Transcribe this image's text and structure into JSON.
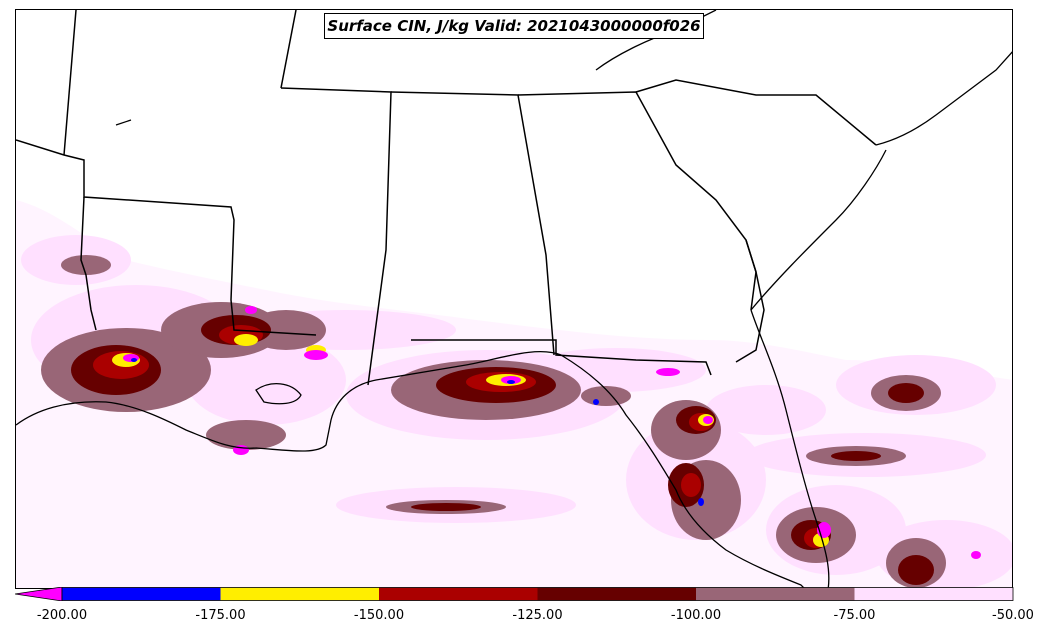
{
  "title": "Surface CIN, J/kg Valid: 2021043000000f026",
  "colorbar": {
    "extend_color": "#ff00ff",
    "bins": [
      {
        "from": -200,
        "to": -175,
        "color": "#0000ff"
      },
      {
        "from": -175,
        "to": -150,
        "color": "#ffee00"
      },
      {
        "from": -150,
        "to": -125,
        "color": "#aa0000"
      },
      {
        "from": -125,
        "to": -100,
        "color": "#660000"
      },
      {
        "from": -100,
        "to": -75,
        "color": "#996677"
      },
      {
        "from": -75,
        "to": -50,
        "color": "#ffe0ff"
      }
    ],
    "tick_labels": [
      "-200.00",
      "-175.00",
      "-150.00",
      "-125.00",
      "-100.00",
      "-75.00",
      "-50.00"
    ]
  },
  "colors": {
    "lightest": "#ffe0ff",
    "mauve": "#996677",
    "dark_red": "#660000",
    "red": "#aa0000",
    "yellow": "#ffee00",
    "blue": "#0000ff",
    "magenta": "#ff00ff",
    "boundaries": "#000000"
  }
}
